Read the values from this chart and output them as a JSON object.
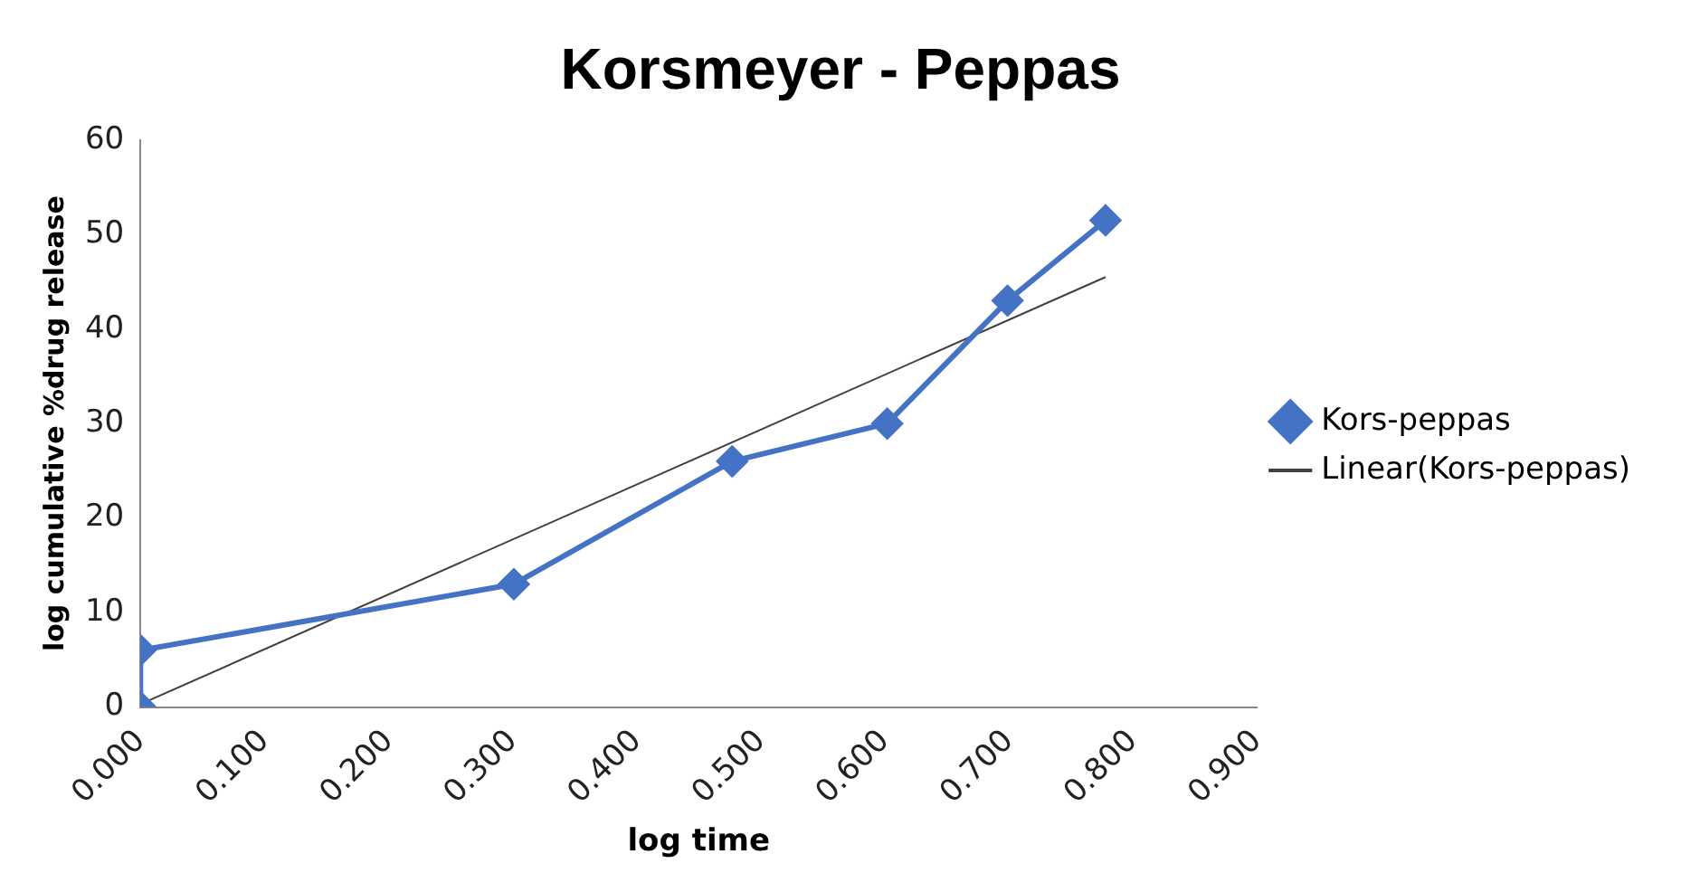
{
  "chart_data": {
    "type": "line",
    "title": "Korsmeyer - Peppas",
    "xlabel": "log time",
    "ylabel": "log cumulative %drug release",
    "xlim": [
      0,
      0.9
    ],
    "ylim": [
      0,
      60
    ],
    "xticks": [
      {
        "value": 0,
        "label": "0.000"
      },
      {
        "value": 0.1,
        "label": "0.100"
      },
      {
        "value": 0.2,
        "label": "0.200"
      },
      {
        "value": 0.3,
        "label": "0.300"
      },
      {
        "value": 0.4,
        "label": "0.400"
      },
      {
        "value": 0.5,
        "label": "0.500"
      },
      {
        "value": 0.6,
        "label": "0.600"
      },
      {
        "value": 0.7,
        "label": "0.700"
      },
      {
        "value": 0.8,
        "label": "0.800"
      },
      {
        "value": 0.9,
        "label": "0.900"
      }
    ],
    "yticks": [
      0,
      10,
      20,
      30,
      40,
      50,
      60
    ],
    "legend": "right",
    "series": [
      {
        "name": "Kors-peppas",
        "color": "#4472c4",
        "marker": "diamond",
        "x": [
          0,
          0,
          0.301,
          0.477,
          0.602,
          0.699,
          0.778
        ],
        "values": [
          0,
          6,
          13,
          26,
          30,
          43,
          51.5
        ]
      },
      {
        "name": "Linear(Kors-peppas)",
        "type": "line",
        "color": "#404040",
        "marker": "none",
        "x": [
          0,
          0.778
        ],
        "values": [
          0.3,
          45.5
        ]
      }
    ]
  }
}
